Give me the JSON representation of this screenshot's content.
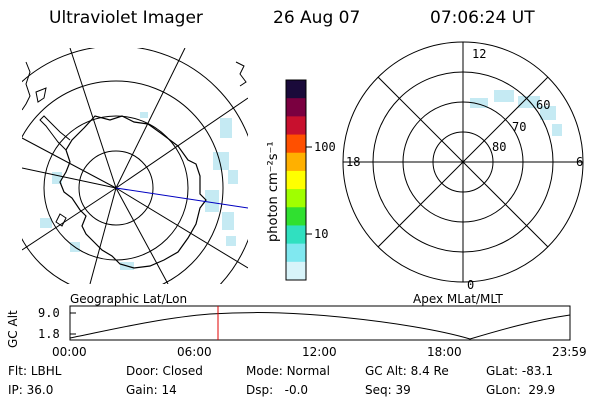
{
  "header": {
    "title": "Ultraviolet Imager",
    "date": "26 Aug 07",
    "time": "07:06:24 UT"
  },
  "left_map": {
    "caption": "Geographic Lat/Lon"
  },
  "right_map": {
    "caption": "Apex MLat/MLT",
    "mlt_labels": {
      "top": "12",
      "left": "18",
      "right": "6",
      "bottom": "0"
    },
    "lat_labels": [
      "80",
      "70",
      "60"
    ]
  },
  "colorbar": {
    "unit_label": "photon cm⁻²s⁻¹",
    "ticks": [
      "100",
      "10"
    ],
    "colors": [
      "#1a0a3a",
      "#7a0040",
      "#c8102e",
      "#ff5000",
      "#ffb000",
      "#ffff00",
      "#a0ff00",
      "#30e030",
      "#30e0c0",
      "#80e8f0",
      "#d8f4fa"
    ]
  },
  "altitude_plot": {
    "ylabel": "GC Alt",
    "y_ticks": [
      "9.0",
      "1.8"
    ],
    "x_ticks": [
      "00:00",
      "06:00",
      "12:00",
      "18:00",
      "23:59"
    ],
    "chart_data": {
      "type": "line",
      "x_hours": [
        0,
        7.1,
        19.0,
        23.98
      ],
      "current_time_hour": 7.1,
      "ylim": [
        1.8,
        9.0
      ]
    }
  },
  "status": {
    "row1": {
      "filter_label": "Flt:",
      "filter_value": "LBHL",
      "door_label": "Door:",
      "door_value": "Closed",
      "mode_label": "Mode:",
      "mode_value": "Normal",
      "gcalt_label": "GC Alt:",
      "gcalt_value": "8.4 Re",
      "glat_label": "GLat:",
      "glat_value": "-83.1"
    },
    "row2": {
      "ip_label": "IP:",
      "ip_value": "36.0",
      "gain_label": "Gain:",
      "gain_value": "14",
      "dsp_label": "Dsp:",
      "dsp_value": "-0.0",
      "seq_label": "Seq:",
      "seq_value": "39",
      "glon_label": "GLon:",
      "glon_value": "29.9"
    }
  }
}
